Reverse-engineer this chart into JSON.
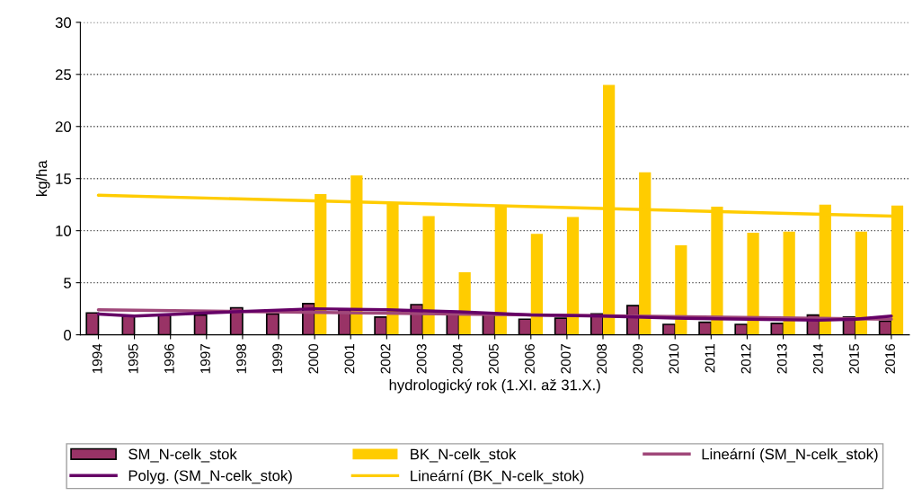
{
  "chart_data": {
    "type": "bar",
    "xlabel": "hydrologický rok (1.XI. až 31.X.)",
    "ylabel": "kg/ha",
    "categories": [
      "1994",
      "1995",
      "1996",
      "1997",
      "1998",
      "1999",
      "2000",
      "2001",
      "2002",
      "2003",
      "2004",
      "2005",
      "2006",
      "2007",
      "2008",
      "2009",
      "2010",
      "2011",
      "2012",
      "2013",
      "2014",
      "2015",
      "2016"
    ],
    "series": [
      {
        "name": "SM_N-celk_stok",
        "color": "#993366",
        "values": [
          2.1,
          1.8,
          1.9,
          1.9,
          2.6,
          2.0,
          3.0,
          2.4,
          1.7,
          2.9,
          2.1,
          2.0,
          1.5,
          1.6,
          2.0,
          2.8,
          1.0,
          1.2,
          1.0,
          1.1,
          1.9,
          1.7,
          1.3
        ]
      },
      {
        "name": "BK_N-celk_stok",
        "color": "#ffcc00",
        "values": [
          null,
          null,
          null,
          null,
          null,
          null,
          13.5,
          15.3,
          12.6,
          11.4,
          6.0,
          12.4,
          9.7,
          11.3,
          24.0,
          15.6,
          8.6,
          12.3,
          9.8,
          9.9,
          12.5,
          9.9,
          12.4
        ]
      },
      {
        "name": "Lineární (SM_N-celk_stok)",
        "type": "line",
        "color": "#a0487a",
        "values": [
          2.4,
          null,
          null,
          null,
          null,
          null,
          null,
          null,
          null,
          null,
          null,
          null,
          null,
          null,
          null,
          null,
          null,
          null,
          null,
          null,
          null,
          null,
          1.5
        ]
      },
      {
        "name": "Polyg. (SM_N-celk_stok)",
        "type": "line",
        "color": "#660066",
        "values": [
          2.0,
          1.8,
          null,
          2.1,
          null,
          null,
          2.5,
          null,
          2.4,
          null,
          2.2,
          null,
          1.9,
          null,
          1.8,
          null,
          1.6,
          null,
          1.5,
          null,
          1.4,
          1.5,
          1.8
        ]
      },
      {
        "name": "Lineární (BK_N-celk_stok)",
        "type": "line",
        "color": "#ffcc00",
        "values": [
          13.4,
          null,
          null,
          null,
          null,
          null,
          null,
          null,
          null,
          null,
          null,
          null,
          null,
          null,
          null,
          null,
          null,
          null,
          null,
          null,
          null,
          null,
          11.4
        ]
      }
    ],
    "ylim": [
      0,
      30
    ],
    "yticks": [
      0,
      5,
      10,
      15,
      20,
      25,
      30
    ],
    "grid": "y",
    "legend": "bottom"
  }
}
